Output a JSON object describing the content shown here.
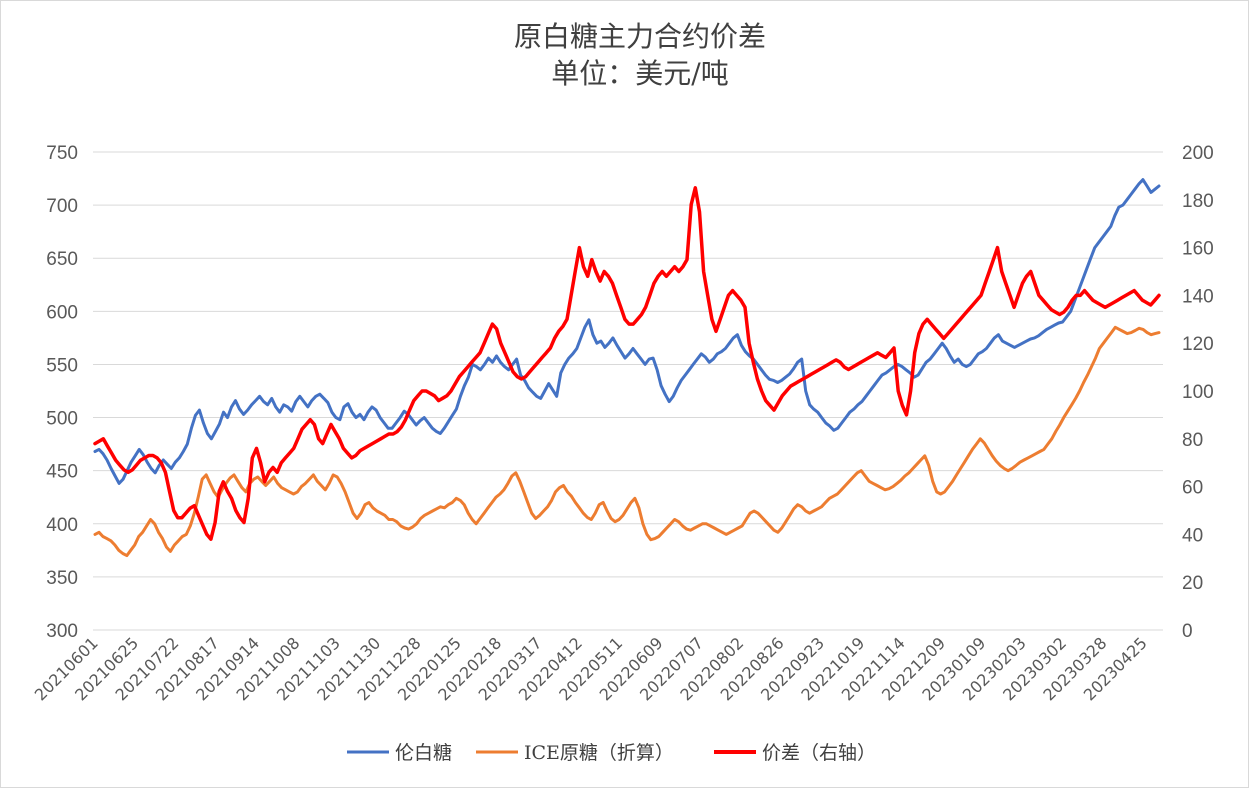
{
  "chart_data": {
    "type": "line",
    "title": "原白糖主力合约价差",
    "subtitle": "单位：美元/吨",
    "y_left": {
      "ylim": [
        300,
        750
      ],
      "ticks": [
        300,
        350,
        400,
        450,
        500,
        550,
        600,
        650,
        700,
        750
      ]
    },
    "y_right": {
      "ylim": [
        0,
        200
      ],
      "ticks": [
        0,
        20,
        40,
        60,
        80,
        100,
        120,
        140,
        160,
        180,
        200
      ]
    },
    "x_tick_labels": [
      "20210601",
      "20210625",
      "20210722",
      "20210817",
      "20210914",
      "20211008",
      "20211103",
      "20211130",
      "20211228",
      "20220125",
      "20220218",
      "20220317",
      "20220412",
      "20220511",
      "20220609",
      "20220707",
      "20220802",
      "20220826",
      "20220923",
      "20221019",
      "20221114",
      "20221209",
      "20230109",
      "20230203",
      "20230302",
      "20230328",
      "20230425"
    ],
    "grid": "horizontal",
    "legend_position": "bottom",
    "series": [
      {
        "name": "伦白糖",
        "color": "#4472c4",
        "axis": "left",
        "values": [
          468,
          470,
          466,
          460,
          452,
          445,
          438,
          442,
          450,
          458,
          464,
          470,
          465,
          458,
          452,
          448,
          455,
          460,
          456,
          452,
          458,
          462,
          468,
          475,
          490,
          502,
          507,
          495,
          485,
          480,
          487,
          494,
          505,
          500,
          510,
          516,
          508,
          503,
          507,
          512,
          516,
          520,
          515,
          512,
          518,
          510,
          505,
          512,
          510,
          506,
          515,
          520,
          515,
          510,
          516,
          520,
          522,
          518,
          514,
          505,
          500,
          498,
          510,
          513,
          505,
          500,
          503,
          498,
          505,
          510,
          507,
          500,
          495,
          490,
          490,
          495,
          500,
          506,
          503,
          498,
          493,
          497,
          500,
          495,
          490,
          487,
          485,
          490,
          496,
          502,
          508,
          520,
          530,
          538,
          550,
          548,
          545,
          550,
          556,
          552,
          558,
          552,
          548,
          545,
          550,
          555,
          540,
          535,
          528,
          524,
          520,
          518,
          525,
          532,
          526,
          520,
          542,
          550,
          556,
          560,
          565,
          575,
          585,
          592,
          578,
          570,
          572,
          566,
          570,
          575,
          568,
          562,
          556,
          560,
          565,
          560,
          555,
          550,
          555,
          556,
          545,
          530,
          522,
          515,
          520,
          528,
          535,
          540,
          545,
          550,
          555,
          560,
          557,
          552,
          555,
          560,
          562,
          565,
          570,
          575,
          578,
          568,
          562,
          558,
          555,
          550,
          545,
          540,
          536,
          535,
          533,
          535,
          538,
          541,
          546,
          552,
          555,
          525,
          512,
          508,
          505,
          500,
          495,
          492,
          488,
          490,
          495,
          500,
          505,
          508,
          512,
          515,
          520,
          525,
          530,
          535,
          540,
          542,
          545,
          548,
          550,
          548,
          545,
          542,
          538,
          540,
          546,
          552,
          555,
          560,
          565,
          570,
          565,
          558,
          552,
          555,
          550,
          548,
          550,
          555,
          560,
          562,
          565,
          570,
          575,
          578,
          572,
          570,
          568,
          566,
          568,
          570,
          572,
          574,
          575,
          577,
          580,
          583,
          585,
          587,
          589,
          590,
          595,
          600,
          610,
          620,
          630,
          640,
          650,
          660,
          665,
          670,
          675,
          680,
          690,
          698,
          700,
          705,
          710,
          715,
          720,
          724,
          718,
          712,
          715,
          718
        ]
      },
      {
        "name": "ICE原糖（折算）",
        "color": "#ed7d31",
        "axis": "left",
        "values": [
          390,
          392,
          388,
          386,
          384,
          380,
          375,
          372,
          370,
          375,
          380,
          388,
          392,
          398,
          404,
          400,
          392,
          386,
          378,
          374,
          380,
          384,
          388,
          390,
          398,
          410,
          425,
          442,
          446,
          438,
          430,
          425,
          432,
          438,
          443,
          446,
          440,
          434,
          430,
          438,
          442,
          444,
          440,
          436,
          440,
          444,
          438,
          434,
          432,
          430,
          428,
          430,
          435,
          438,
          442,
          446,
          440,
          436,
          432,
          438,
          446,
          444,
          438,
          430,
          420,
          410,
          405,
          410,
          418,
          420,
          415,
          412,
          410,
          408,
          404,
          404,
          402,
          398,
          396,
          395,
          397,
          400,
          405,
          408,
          410,
          412,
          414,
          416,
          415,
          418,
          420,
          424,
          422,
          418,
          410,
          404,
          400,
          405,
          410,
          415,
          420,
          425,
          428,
          432,
          438,
          445,
          448,
          440,
          430,
          420,
          410,
          405,
          408,
          412,
          416,
          422,
          430,
          434,
          436,
          430,
          426,
          420,
          415,
          410,
          406,
          404,
          410,
          418,
          420,
          412,
          405,
          402,
          404,
          408,
          414,
          420,
          424,
          415,
          400,
          390,
          385,
          386,
          388,
          392,
          396,
          400,
          404,
          402,
          398,
          395,
          394,
          396,
          398,
          400,
          400,
          398,
          396,
          394,
          392,
          390,
          392,
          394,
          396,
          398,
          404,
          410,
          412,
          410,
          406,
          402,
          398,
          394,
          392,
          396,
          402,
          408,
          414,
          418,
          416,
          412,
          410,
          412,
          414,
          416,
          420,
          424,
          426,
          428,
          432,
          436,
          440,
          444,
          448,
          450,
          445,
          440,
          438,
          436,
          434,
          432,
          433,
          435,
          438,
          441,
          445,
          448,
          452,
          456,
          460,
          464,
          455,
          440,
          430,
          428,
          430,
          435,
          440,
          446,
          452,
          458,
          464,
          470,
          475,
          480,
          476,
          470,
          464,
          459,
          455,
          452,
          450,
          452,
          455,
          458,
          460,
          462,
          464,
          466,
          468,
          470,
          475,
          480,
          487,
          493,
          500,
          506,
          512,
          518,
          525,
          533,
          540,
          548,
          556,
          565,
          570,
          575,
          580,
          585,
          583,
          581,
          579,
          580,
          582,
          584,
          583,
          580,
          578,
          579,
          580
        ]
      },
      {
        "name": "价差（右轴）",
        "color": "#ff0000",
        "axis": "right",
        "values": [
          78,
          79,
          80,
          77,
          74,
          71,
          69,
          67,
          66,
          67,
          69,
          71,
          72,
          73,
          73,
          72,
          70,
          66,
          58,
          50,
          47,
          47,
          49,
          51,
          52,
          48,
          44,
          40,
          38,
          45,
          58,
          62,
          58,
          55,
          50,
          47,
          45,
          55,
          72,
          76,
          70,
          62,
          66,
          68,
          66,
          70,
          72,
          74,
          76,
          80,
          84,
          86,
          88,
          86,
          80,
          78,
          82,
          86,
          83,
          80,
          76,
          74,
          72,
          73,
          75,
          76,
          77,
          78,
          79,
          80,
          81,
          82,
          82,
          83,
          85,
          88,
          92,
          96,
          98,
          100,
          100,
          99,
          98,
          96,
          97,
          98,
          100,
          103,
          106,
          108,
          110,
          112,
          114,
          116,
          120,
          124,
          128,
          126,
          120,
          116,
          112,
          108,
          106,
          105,
          106,
          108,
          110,
          112,
          114,
          116,
          118,
          122,
          125,
          127,
          130,
          140,
          150,
          160,
          152,
          148,
          155,
          150,
          146,
          150,
          148,
          145,
          140,
          135,
          130,
          128,
          128,
          130,
          132,
          135,
          140,
          145,
          148,
          150,
          148,
          150,
          152,
          150,
          152,
          155,
          178,
          185,
          175,
          150,
          140,
          130,
          125,
          130,
          135,
          140,
          142,
          140,
          138,
          135,
          120,
          112,
          105,
          100,
          96,
          94,
          92,
          95,
          98,
          100,
          102,
          103,
          104,
          105,
          106,
          107,
          108,
          109,
          110,
          111,
          112,
          113,
          112,
          110,
          109,
          110,
          111,
          112,
          113,
          114,
          115,
          116,
          115,
          114,
          116,
          118,
          100,
          94,
          90,
          100,
          116,
          124,
          128,
          130,
          128,
          126,
          124,
          122,
          124,
          126,
          128,
          130,
          132,
          134,
          136,
          138,
          140,
          145,
          150,
          155,
          160,
          150,
          145,
          140,
          135,
          140,
          145,
          148,
          150,
          145,
          140,
          138,
          136,
          134,
          133,
          132,
          133,
          135,
          138,
          140,
          140,
          142,
          140,
          138,
          137,
          136,
          135,
          136,
          137,
          138,
          139,
          140,
          141,
          142,
          140,
          138,
          137,
          136,
          138,
          140
        ]
      }
    ]
  }
}
